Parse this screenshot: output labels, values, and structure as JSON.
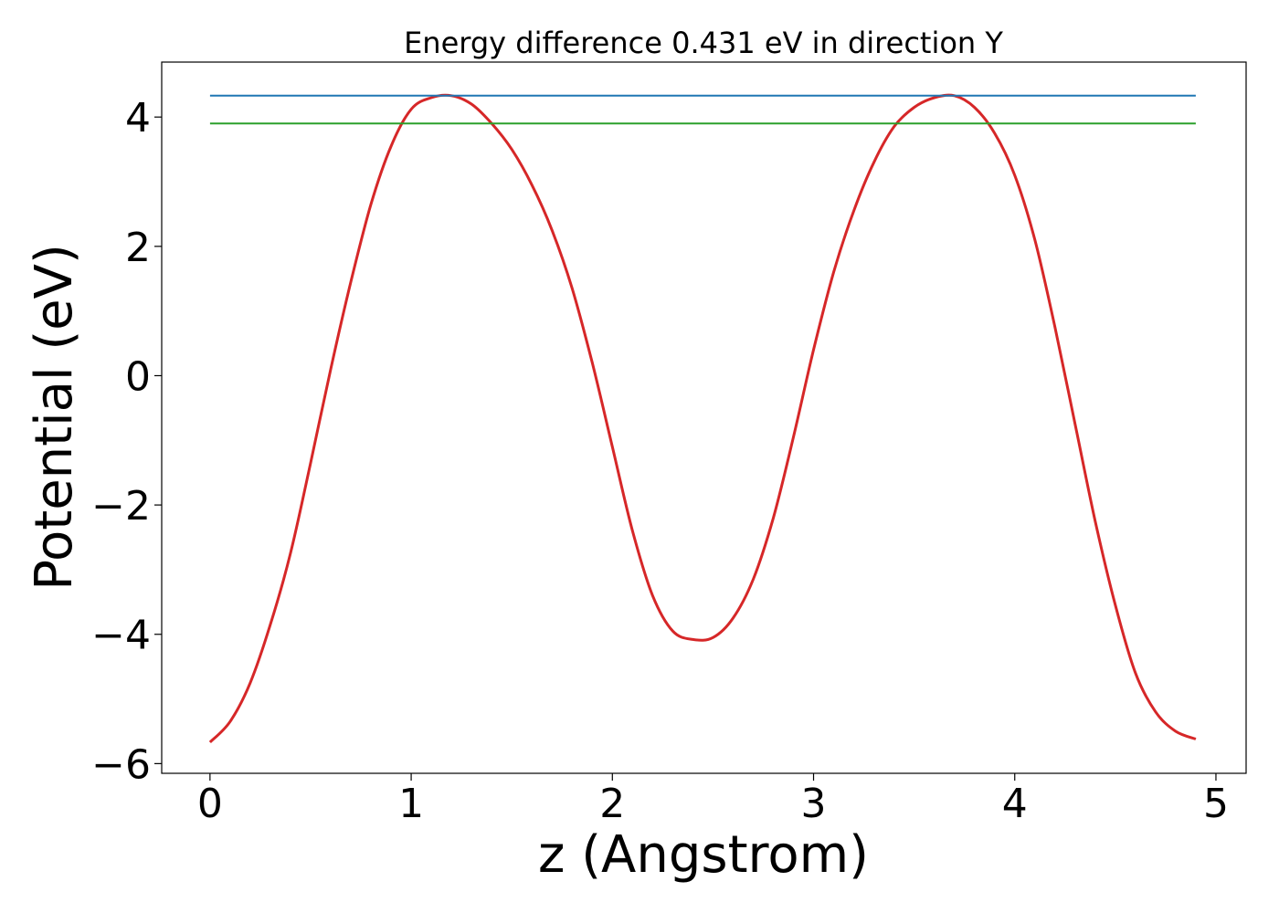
{
  "chart_data": {
    "type": "line",
    "title": "Energy difference 0.431 eV in direction Y",
    "xlabel": "z (Angstrom)",
    "ylabel": "Potential (eV)",
    "xlim": [
      -0.24,
      5.15
    ],
    "ylim": [
      -6.15,
      4.85
    ],
    "grid": false,
    "legend": "none",
    "x_ticks": [
      {
        "value": 0,
        "label": "0"
      },
      {
        "value": 1,
        "label": "1"
      },
      {
        "value": 2,
        "label": "2"
      },
      {
        "value": 3,
        "label": "3"
      },
      {
        "value": 4,
        "label": "4"
      },
      {
        "value": 5,
        "label": "5"
      }
    ],
    "y_ticks": [
      {
        "value": -6,
        "label": "−6"
      },
      {
        "value": -4,
        "label": "−4"
      },
      {
        "value": -2,
        "label": "−2"
      },
      {
        "value": 0,
        "label": "0"
      },
      {
        "value": 2,
        "label": "2"
      },
      {
        "value": 4,
        "label": "4"
      }
    ],
    "series": [
      {
        "color": "#d62728",
        "style": "curve",
        "x": [
          0.0,
          0.1,
          0.2,
          0.3,
          0.4,
          0.5,
          0.6,
          0.7,
          0.8,
          0.9,
          1.0,
          1.1,
          1.2,
          1.3,
          1.4,
          1.5,
          1.6,
          1.7,
          1.8,
          1.9,
          2.0,
          2.1,
          2.2,
          2.3,
          2.4,
          2.5,
          2.6,
          2.7,
          2.8,
          2.9,
          3.0,
          3.1,
          3.2,
          3.3,
          3.4,
          3.5,
          3.6,
          3.7,
          3.8,
          3.9,
          4.0,
          4.1,
          4.2,
          4.3,
          4.4,
          4.5,
          4.6,
          4.7,
          4.8,
          4.9
        ],
        "y": [
          -5.67,
          -5.35,
          -4.75,
          -3.85,
          -2.75,
          -1.35,
          0.1,
          1.45,
          2.65,
          3.55,
          4.12,
          4.3,
          4.33,
          4.2,
          3.9,
          3.5,
          2.95,
          2.25,
          1.35,
          0.2,
          -1.1,
          -2.4,
          -3.4,
          -3.95,
          -4.08,
          -4.05,
          -3.75,
          -3.15,
          -2.2,
          -0.95,
          0.4,
          1.6,
          2.55,
          3.3,
          3.85,
          4.15,
          4.3,
          4.33,
          4.15,
          3.75,
          3.1,
          2.1,
          0.75,
          -0.75,
          -2.25,
          -3.55,
          -4.6,
          -5.2,
          -5.5,
          -5.62
        ]
      },
      {
        "color": "#1f77b4",
        "style": "hline",
        "x": [
          0.0,
          4.9
        ],
        "y": [
          4.33,
          4.33
        ]
      },
      {
        "color": "#2ca02c",
        "style": "hline",
        "x": [
          0.0,
          4.9
        ],
        "y": [
          3.9,
          3.9
        ]
      }
    ]
  }
}
